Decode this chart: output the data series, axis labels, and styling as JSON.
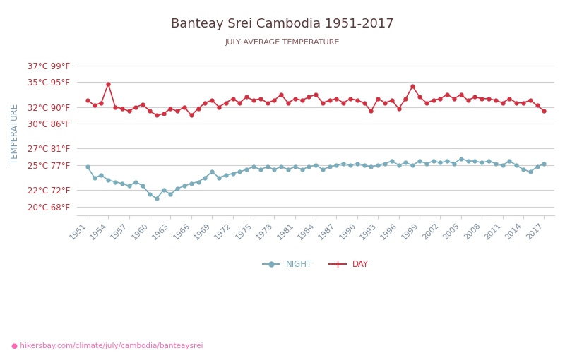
{
  "title": "Banteay Srei Cambodia 1951-2017",
  "subtitle": "JULY AVERAGE TEMPERATURE",
  "xlabel_url": "hikersbay.com/climate/july/cambodia/banteaysrei",
  "ylabel": "TEMPERATURE",
  "background_color": "#ffffff",
  "grid_color": "#d0d0d0",
  "title_color": "#5a3a3a",
  "subtitle_color": "#8a5a5a",
  "ylabel_color": "#7a9ab0",
  "tick_color_left": "#c0303a",
  "tick_color_bottom": "#7a8a9a",
  "day_color": "#d03040",
  "night_color": "#7aacbc",
  "years": [
    1951,
    1952,
    1953,
    1954,
    1955,
    1956,
    1957,
    1958,
    1959,
    1960,
    1961,
    1962,
    1963,
    1964,
    1965,
    1966,
    1967,
    1968,
    1969,
    1970,
    1971,
    1972,
    1973,
    1974,
    1975,
    1976,
    1977,
    1978,
    1979,
    1980,
    1981,
    1982,
    1983,
    1984,
    1985,
    1986,
    1987,
    1988,
    1989,
    1990,
    1991,
    1992,
    1993,
    1994,
    1995,
    1996,
    1997,
    1998,
    1999,
    2000,
    2001,
    2002,
    2003,
    2004,
    2005,
    2006,
    2007,
    2008,
    2009,
    2010,
    2011,
    2012,
    2013,
    2014,
    2015,
    2016,
    2017
  ],
  "day_temps": [
    32.8,
    32.2,
    32.5,
    34.8,
    32.0,
    31.8,
    31.5,
    32.0,
    32.3,
    31.5,
    31.0,
    31.2,
    31.8,
    31.5,
    32.0,
    31.0,
    31.8,
    32.5,
    32.8,
    32.0,
    32.5,
    33.0,
    32.5,
    33.2,
    32.8,
    33.0,
    32.5,
    32.8,
    33.5,
    32.5,
    33.0,
    32.8,
    33.2,
    33.5,
    32.5,
    32.8,
    33.0,
    32.5,
    33.0,
    32.8,
    32.5,
    31.5,
    33.0,
    32.5,
    32.8,
    31.8,
    33.0,
    34.5,
    33.2,
    32.5,
    32.8,
    33.0,
    33.5,
    33.0,
    33.5,
    32.8,
    33.2,
    33.0,
    33.0,
    32.8,
    32.5,
    33.0,
    32.5,
    32.5,
    32.8,
    32.2,
    31.5
  ],
  "night_temps": [
    24.8,
    23.5,
    23.8,
    23.2,
    23.0,
    22.8,
    22.5,
    23.0,
    22.5,
    21.5,
    21.0,
    22.0,
    21.5,
    22.2,
    22.5,
    22.8,
    23.0,
    23.5,
    24.2,
    23.5,
    23.8,
    24.0,
    24.2,
    24.5,
    24.8,
    24.5,
    24.8,
    24.5,
    24.8,
    24.5,
    24.8,
    24.5,
    24.8,
    25.0,
    24.5,
    24.8,
    25.0,
    25.2,
    25.0,
    25.2,
    25.0,
    24.8,
    25.0,
    25.2,
    25.5,
    25.0,
    25.3,
    25.0,
    25.5,
    25.2,
    25.5,
    25.3,
    25.5,
    25.2,
    25.8,
    25.5,
    25.5,
    25.3,
    25.5,
    25.2,
    25.0,
    25.5,
    25.0,
    24.5,
    24.2,
    24.8,
    25.2
  ],
  "yticks_c": [
    20,
    22,
    25,
    27,
    30,
    32,
    35,
    37
  ],
  "yticks_f": [
    68,
    72,
    77,
    81,
    86,
    90,
    95,
    99
  ],
  "xticks": [
    1951,
    1954,
    1957,
    1960,
    1963,
    1966,
    1969,
    1972,
    1975,
    1978,
    1981,
    1984,
    1987,
    1990,
    1993,
    1996,
    1999,
    2002,
    2005,
    2008,
    2011,
    2014,
    2017
  ],
  "ymin": 19.0,
  "ymax": 38.5
}
